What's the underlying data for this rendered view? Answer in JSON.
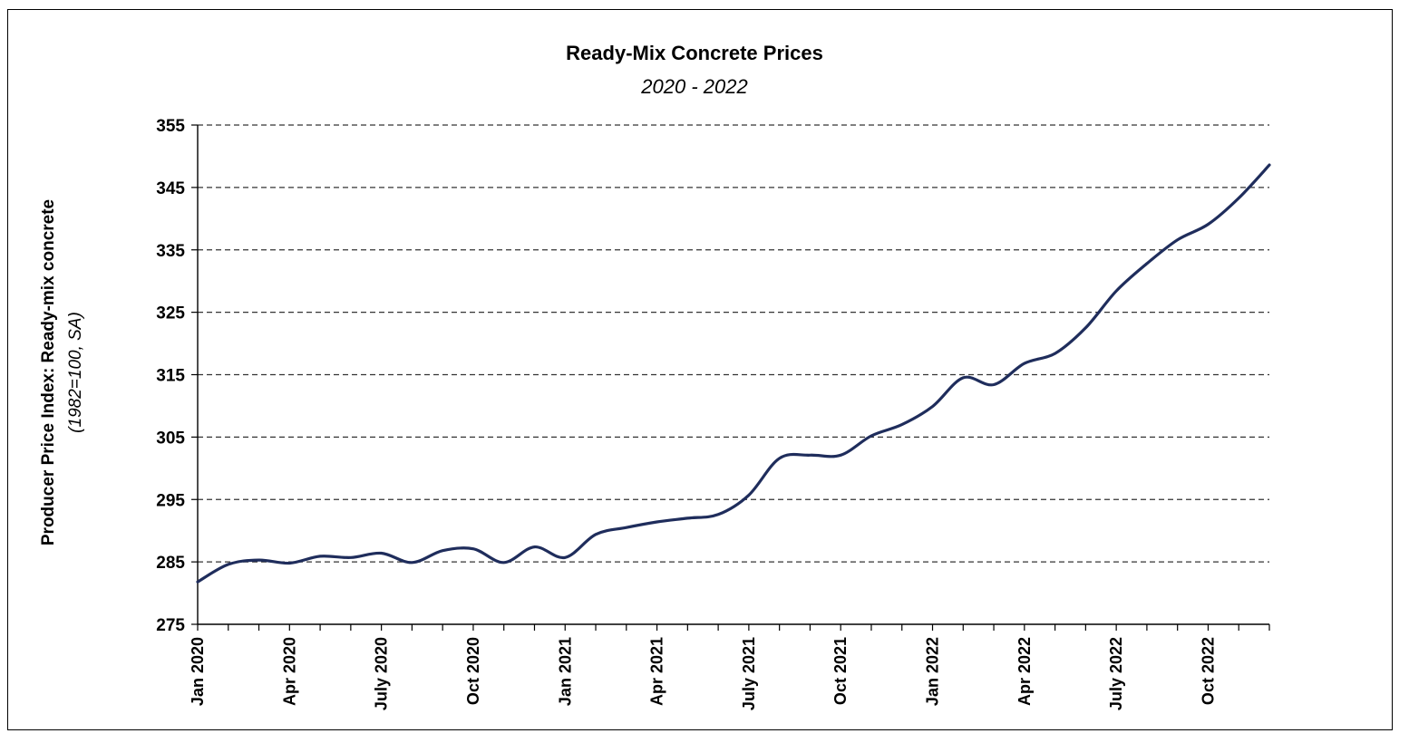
{
  "chart_data": {
    "type": "line",
    "title": "Ready-Mix Concrete Prices",
    "subtitle": "2020 - 2022",
    "ylabel": "Producer Price Index: Ready-mix concrete",
    "ylabel_note": "(1982=100, SA)",
    "xlabel": "",
    "ylim": [
      275,
      355
    ],
    "yticks": [
      275,
      285,
      295,
      305,
      315,
      325,
      335,
      345,
      355
    ],
    "grid": "horizontal dashed",
    "line_color": "#1f2d5c",
    "x": [
      "Jan 2020",
      "Feb 2020",
      "Mar 2020",
      "Apr 2020",
      "May 2020",
      "Jun 2020",
      "July 2020",
      "Aug 2020",
      "Sep 2020",
      "Oct 2020",
      "Nov 2020",
      "Dec 2020",
      "Jan 2021",
      "Feb 2021",
      "Mar 2021",
      "Apr 2021",
      "May 2021",
      "Jun 2021",
      "July 2021",
      "Aug 2021",
      "Sep 2021",
      "Oct 2021",
      "Nov 2021",
      "Dec 2021",
      "Jan 2022",
      "Feb 2022",
      "Mar 2022",
      "Apr 2022",
      "May 2022",
      "Jun 2022",
      "July 2022",
      "Aug 2022",
      "Sep 2022",
      "Oct 2022",
      "Nov 2022",
      "Dec 2022"
    ],
    "xtick_labels": [
      {
        "index": 0,
        "label": "Jan 2020"
      },
      {
        "index": 3,
        "label": "Apr 2020"
      },
      {
        "index": 6,
        "label": "July 2020"
      },
      {
        "index": 9,
        "label": "Oct 2020"
      },
      {
        "index": 12,
        "label": "Jan 2021"
      },
      {
        "index": 15,
        "label": "Apr 2021"
      },
      {
        "index": 18,
        "label": "July 2021"
      },
      {
        "index": 21,
        "label": "Oct 2021"
      },
      {
        "index": 24,
        "label": "Jan 2022"
      },
      {
        "index": 27,
        "label": "Apr 2022"
      },
      {
        "index": 30,
        "label": "July 2022"
      },
      {
        "index": 33,
        "label": "Oct 2022"
      }
    ],
    "series": [
      {
        "values": [
          281.8,
          284.6,
          285.3,
          284.8,
          285.9,
          285.7,
          286.4,
          284.9,
          286.8,
          287.1,
          284.9,
          287.4,
          285.7,
          289.4,
          290.5,
          291.4,
          292.0,
          292.6,
          295.7,
          301.6,
          302.1,
          302.1,
          305.2,
          307.0,
          309.9,
          314.5,
          313.4,
          316.8,
          318.4,
          322.5,
          328.4,
          332.8,
          336.6,
          339.1,
          343.3,
          348.6
        ]
      }
    ]
  }
}
